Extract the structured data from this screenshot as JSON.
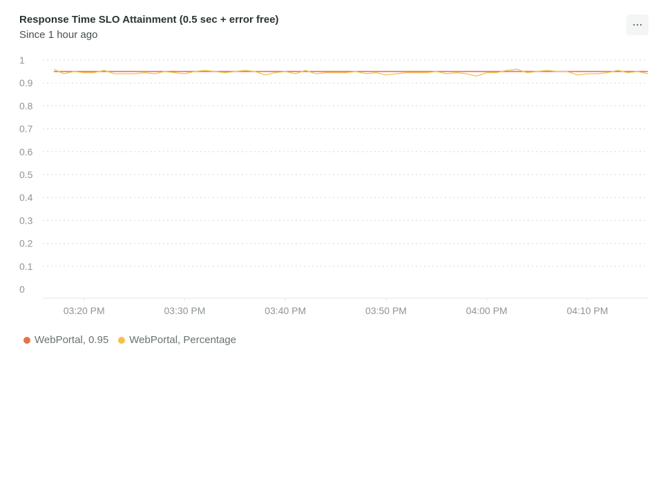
{
  "header": {
    "title": "Response Time SLO Attainment (0.5 sec + error free)",
    "subtitle": "Since 1 hour ago",
    "menu_icon": "more-horizontal-icon"
  },
  "colors": {
    "threshold": "#e8704a",
    "percentage": "#f5c04a",
    "grid": "#d4d7d7",
    "axis": "#e3e4e4",
    "tick_text": "#8e9494"
  },
  "chart_data": {
    "type": "line",
    "title": "Response Time SLO Attainment (0.5 sec + error free)",
    "subtitle": "Since 1 hour ago",
    "xlabel": "",
    "ylabel": "",
    "ylim": [
      0,
      1
    ],
    "y_ticks": [
      "0",
      "0.1",
      "0.2",
      "0.3",
      "0.4",
      "0.5",
      "0.6",
      "0.7",
      "0.8",
      "0.9",
      "1"
    ],
    "x_tick_labels": [
      "03:20 PM",
      "03:30 PM",
      "03:40 PM",
      "03:50 PM",
      "04:00 PM",
      "04:10 PM"
    ],
    "x_range": [
      "03:17 PM",
      "04:16 PM"
    ],
    "grid": true,
    "legend_position": "bottom-left",
    "series": [
      {
        "name": "WebPortal, 0.95",
        "color": "#e8704a",
        "x": [
          "03:17 PM",
          "04:16 PM"
        ],
        "values": [
          0.95,
          0.95
        ]
      },
      {
        "name": "WebPortal, Percentage",
        "color": "#f5c04a",
        "x": [
          "03:17 PM",
          "03:18 PM",
          "03:19 PM",
          "03:20 PM",
          "03:21 PM",
          "03:22 PM",
          "03:23 PM",
          "03:24 PM",
          "03:25 PM",
          "03:26 PM",
          "03:27 PM",
          "03:28 PM",
          "03:29 PM",
          "03:30 PM",
          "03:31 PM",
          "03:32 PM",
          "03:33 PM",
          "03:34 PM",
          "03:35 PM",
          "03:36 PM",
          "03:37 PM",
          "03:38 PM",
          "03:39 PM",
          "03:40 PM",
          "03:41 PM",
          "03:42 PM",
          "03:43 PM",
          "03:44 PM",
          "03:45 PM",
          "03:46 PM",
          "03:47 PM",
          "03:48 PM",
          "03:49 PM",
          "03:50 PM",
          "03:51 PM",
          "03:52 PM",
          "03:53 PM",
          "03:54 PM",
          "03:55 PM",
          "03:56 PM",
          "03:57 PM",
          "03:58 PM",
          "03:59 PM",
          "04:00 PM",
          "04:01 PM",
          "04:02 PM",
          "04:03 PM",
          "04:04 PM",
          "04:05 PM",
          "04:06 PM",
          "04:07 PM",
          "04:08 PM",
          "04:09 PM",
          "04:10 PM",
          "04:11 PM",
          "04:12 PM",
          "04:13 PM",
          "04:14 PM",
          "04:15 PM",
          "04:16 PM"
        ],
        "values": [
          0.96,
          0.94,
          0.95,
          0.945,
          0.945,
          0.955,
          0.94,
          0.94,
          0.94,
          0.945,
          0.94,
          0.95,
          0.945,
          0.94,
          0.95,
          0.955,
          0.95,
          0.945,
          0.95,
          0.955,
          0.95,
          0.935,
          0.945,
          0.95,
          0.94,
          0.955,
          0.94,
          0.945,
          0.945,
          0.945,
          0.95,
          0.94,
          0.945,
          0.935,
          0.94,
          0.945,
          0.945,
          0.945,
          0.95,
          0.94,
          0.945,
          0.94,
          0.93,
          0.945,
          0.945,
          0.955,
          0.96,
          0.945,
          0.95,
          0.955,
          0.95,
          0.95,
          0.935,
          0.94,
          0.94,
          0.945,
          0.955,
          0.945,
          0.95,
          0.94
        ]
      }
    ]
  }
}
